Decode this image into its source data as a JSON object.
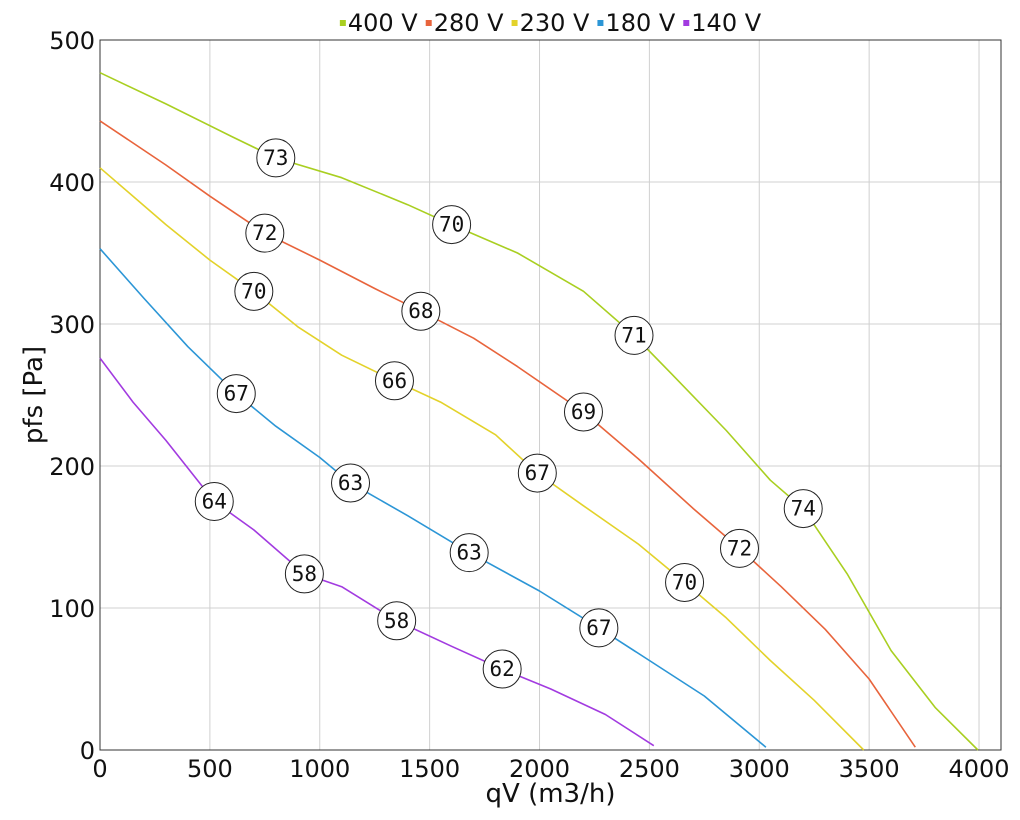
{
  "chart_data": {
    "type": "line",
    "xlabel": "qV (m3/h)",
    "ylabel": "pfs [Pa]",
    "xlim": [
      0,
      4100
    ],
    "ylim": [
      0,
      500
    ],
    "x_ticks": [
      0,
      500,
      1000,
      1500,
      2000,
      2500,
      3000,
      3500,
      4000
    ],
    "y_ticks": [
      0,
      100,
      200,
      300,
      400,
      500
    ],
    "grid": true,
    "legend_position": "top",
    "series": [
      {
        "name": "400 V",
        "color": "#a9cf21",
        "points": [
          [
            0,
            477
          ],
          [
            300,
            455
          ],
          [
            600,
            432
          ],
          [
            800,
            417
          ],
          [
            1100,
            403
          ],
          [
            1400,
            384
          ],
          [
            1600,
            370
          ],
          [
            1900,
            350
          ],
          [
            2200,
            323
          ],
          [
            2430,
            292
          ],
          [
            2600,
            265
          ],
          [
            2850,
            225
          ],
          [
            3050,
            190
          ],
          [
            3200,
            170
          ],
          [
            3400,
            124
          ],
          [
            3600,
            70
          ],
          [
            3800,
            30
          ],
          [
            3995,
            0
          ]
        ],
        "labels": [
          {
            "x": 800,
            "y": 417,
            "text": "73"
          },
          {
            "x": 1600,
            "y": 370,
            "text": "70"
          },
          {
            "x": 2430,
            "y": 292,
            "text": "71"
          },
          {
            "x": 3200,
            "y": 170,
            "text": "74"
          }
        ]
      },
      {
        "name": "280 V",
        "color": "#e8643c",
        "points": [
          [
            0,
            443
          ],
          [
            300,
            412
          ],
          [
            500,
            390
          ],
          [
            750,
            364
          ],
          [
            1000,
            345
          ],
          [
            1250,
            325
          ],
          [
            1460,
            309
          ],
          [
            1700,
            290
          ],
          [
            1900,
            270
          ],
          [
            2200,
            238
          ],
          [
            2450,
            205
          ],
          [
            2700,
            170
          ],
          [
            2910,
            142
          ],
          [
            3100,
            115
          ],
          [
            3300,
            85
          ],
          [
            3500,
            50
          ],
          [
            3710,
            2
          ]
        ],
        "labels": [
          {
            "x": 750,
            "y": 364,
            "text": "72"
          },
          {
            "x": 1460,
            "y": 309,
            "text": "68"
          },
          {
            "x": 2200,
            "y": 238,
            "text": "69"
          },
          {
            "x": 2910,
            "y": 142,
            "text": "72"
          }
        ]
      },
      {
        "name": "230 V",
        "color": "#e3d22a",
        "points": [
          [
            0,
            410
          ],
          [
            300,
            370
          ],
          [
            500,
            345
          ],
          [
            700,
            323
          ],
          [
            900,
            298
          ],
          [
            1100,
            278
          ],
          [
            1340,
            260
          ],
          [
            1550,
            245
          ],
          [
            1800,
            222
          ],
          [
            1990,
            195
          ],
          [
            2200,
            172
          ],
          [
            2450,
            145
          ],
          [
            2660,
            118
          ],
          [
            2850,
            93
          ],
          [
            3050,
            63
          ],
          [
            3250,
            35
          ],
          [
            3475,
            0
          ]
        ],
        "labels": [
          {
            "x": 700,
            "y": 323,
            "text": "70"
          },
          {
            "x": 1340,
            "y": 260,
            "text": "66"
          },
          {
            "x": 1990,
            "y": 195,
            "text": "67"
          },
          {
            "x": 2660,
            "y": 118,
            "text": "70"
          }
        ]
      },
      {
        "name": "180 V",
        "color": "#2c96d6",
        "points": [
          [
            0,
            353
          ],
          [
            200,
            318
          ],
          [
            400,
            284
          ],
          [
            620,
            251
          ],
          [
            800,
            228
          ],
          [
            1000,
            206
          ],
          [
            1140,
            188
          ],
          [
            1400,
            165
          ],
          [
            1680,
            139
          ],
          [
            2000,
            112
          ],
          [
            2270,
            86
          ],
          [
            2500,
            63
          ],
          [
            2750,
            38
          ],
          [
            3030,
            2
          ]
        ],
        "labels": [
          {
            "x": 620,
            "y": 251,
            "text": "67"
          },
          {
            "x": 1140,
            "y": 188,
            "text": "63"
          },
          {
            "x": 1680,
            "y": 139,
            "text": "63"
          },
          {
            "x": 2270,
            "y": 86,
            "text": "67"
          }
        ]
      },
      {
        "name": "140 V",
        "color": "#a23be0",
        "points": [
          [
            0,
            276
          ],
          [
            150,
            245
          ],
          [
            300,
            218
          ],
          [
            520,
            175
          ],
          [
            700,
            155
          ],
          [
            930,
            124
          ],
          [
            1100,
            115
          ],
          [
            1350,
            91
          ],
          [
            1600,
            73
          ],
          [
            1830,
            57
          ],
          [
            2050,
            43
          ],
          [
            2300,
            25
          ],
          [
            2520,
            3
          ]
        ],
        "labels": [
          {
            "x": 520,
            "y": 175,
            "text": "64"
          },
          {
            "x": 930,
            "y": 124,
            "text": "58"
          },
          {
            "x": 1350,
            "y": 91,
            "text": "58"
          },
          {
            "x": 1830,
            "y": 57,
            "text": "62"
          }
        ]
      }
    ]
  }
}
